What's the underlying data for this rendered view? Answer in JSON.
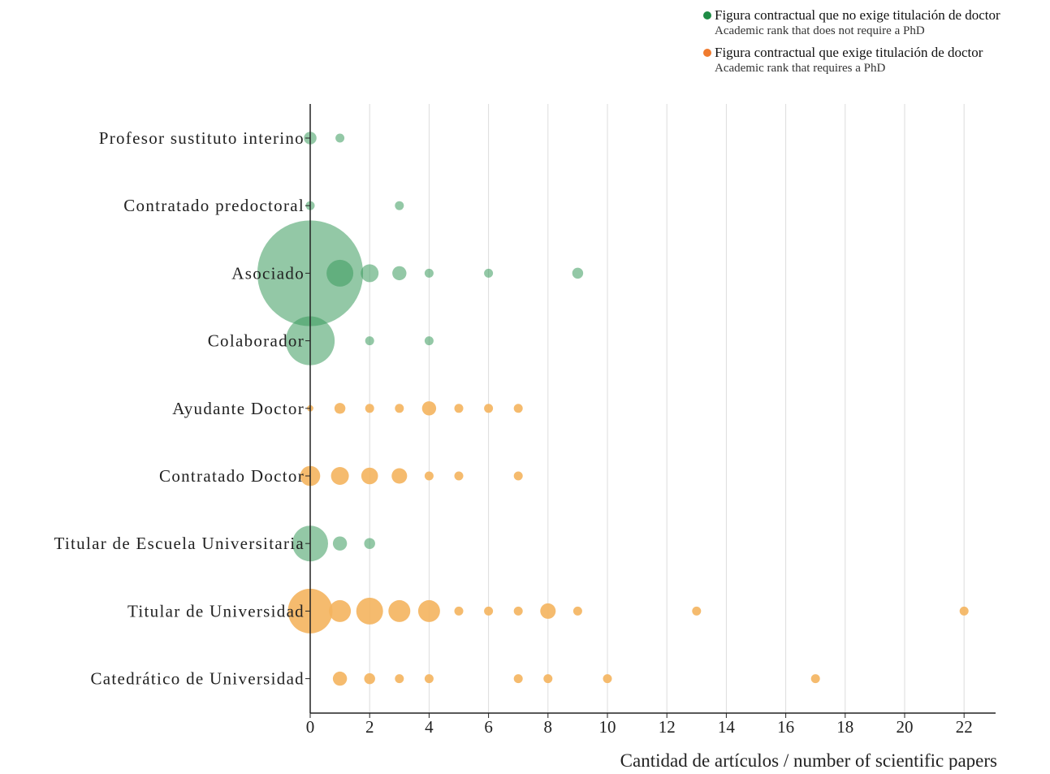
{
  "legend": {
    "no_phd_es": "Figura contractual que no exige titulación de doctor",
    "no_phd_en": "Academic rank that does not require a PhD",
    "phd_es": "Figura contractual que exige titulación de doctor",
    "phd_en": "Academic rank that requires a PhD"
  },
  "colors": {
    "no_phd_legend": "#1e8c45",
    "phd_legend": "#f07b2e",
    "no_phd_bubble": "#3a9a5c",
    "phd_bubble": "#f4b45e",
    "axis": "#222222",
    "grid": "#dddddd"
  },
  "chart_data": {
    "type": "scatter",
    "subtype": "bubble",
    "xlabel": "Cantidad de artículos / number of scientific papers",
    "xlim": [
      0,
      23
    ],
    "xticks": [
      0,
      2,
      4,
      6,
      8,
      10,
      12,
      14,
      16,
      18,
      20,
      22
    ],
    "grid": "vertical",
    "legend_position": "top-right",
    "categories": [
      "Profesor sustituto interino",
      "Contratado predoctoral",
      "Asociado",
      "Colaborador",
      "Ayudante Doctor",
      "Contratado Doctor",
      "Titular de Escuela Universitaria",
      "Titular de Universidad",
      "Catedrático de Universidad"
    ],
    "category_group": [
      "no_phd",
      "no_phd",
      "no_phd",
      "no_phd",
      "phd",
      "phd",
      "no_phd",
      "phd",
      "phd"
    ],
    "points": [
      {
        "category": "Profesor sustituto interino",
        "x": 0,
        "size": 2
      },
      {
        "category": "Profesor sustituto interino",
        "x": 1,
        "size": 1
      },
      {
        "category": "Contratado predoctoral",
        "x": 0,
        "size": 1
      },
      {
        "category": "Contratado predoctoral",
        "x": 3,
        "size": 1
      },
      {
        "category": "Asociado",
        "x": 0,
        "size": 140
      },
      {
        "category": "Asociado",
        "x": 1,
        "size": 9
      },
      {
        "category": "Asociado",
        "x": 2,
        "size": 4
      },
      {
        "category": "Asociado",
        "x": 3,
        "size": 2.5
      },
      {
        "category": "Asociado",
        "x": 4,
        "size": 1
      },
      {
        "category": "Asociado",
        "x": 6,
        "size": 1
      },
      {
        "category": "Asociado",
        "x": 9,
        "size": 1.5
      },
      {
        "category": "Colaborador",
        "x": 0,
        "size": 30
      },
      {
        "category": "Colaborador",
        "x": 2,
        "size": 1
      },
      {
        "category": "Colaborador",
        "x": 4,
        "size": 1
      },
      {
        "category": "Ayudante Doctor",
        "x": 0,
        "size": 0.5
      },
      {
        "category": "Ayudante Doctor",
        "x": 1,
        "size": 1.5
      },
      {
        "category": "Ayudante Doctor",
        "x": 2,
        "size": 1
      },
      {
        "category": "Ayudante Doctor",
        "x": 3,
        "size": 1
      },
      {
        "category": "Ayudante Doctor",
        "x": 4,
        "size": 2.5
      },
      {
        "category": "Ayudante Doctor",
        "x": 5,
        "size": 1
      },
      {
        "category": "Ayudante Doctor",
        "x": 6,
        "size": 1
      },
      {
        "category": "Ayudante Doctor",
        "x": 7,
        "size": 1
      },
      {
        "category": "Contratado Doctor",
        "x": 0,
        "size": 5
      },
      {
        "category": "Contratado Doctor",
        "x": 1,
        "size": 4
      },
      {
        "category": "Contratado Doctor",
        "x": 2,
        "size": 3.5
      },
      {
        "category": "Contratado Doctor",
        "x": 3,
        "size": 3
      },
      {
        "category": "Contratado Doctor",
        "x": 4,
        "size": 1
      },
      {
        "category": "Contratado Doctor",
        "x": 5,
        "size": 1
      },
      {
        "category": "Contratado Doctor",
        "x": 7,
        "size": 1
      },
      {
        "category": "Titular de Escuela Universitaria",
        "x": 0,
        "size": 16
      },
      {
        "category": "Titular de Escuela Universitaria",
        "x": 1,
        "size": 2.5
      },
      {
        "category": "Titular de Escuela Universitaria",
        "x": 2,
        "size": 1.5
      },
      {
        "category": "Titular de Universidad",
        "x": 0,
        "size": 25
      },
      {
        "category": "Titular de Universidad",
        "x": 1,
        "size": 6
      },
      {
        "category": "Titular de Universidad",
        "x": 2,
        "size": 9
      },
      {
        "category": "Titular de Universidad",
        "x": 3,
        "size": 6
      },
      {
        "category": "Titular de Universidad",
        "x": 4,
        "size": 6
      },
      {
        "category": "Titular de Universidad",
        "x": 5,
        "size": 1
      },
      {
        "category": "Titular de Universidad",
        "x": 6,
        "size": 1
      },
      {
        "category": "Titular de Universidad",
        "x": 7,
        "size": 1
      },
      {
        "category": "Titular de Universidad",
        "x": 8,
        "size": 3
      },
      {
        "category": "Titular de Universidad",
        "x": 9,
        "size": 1
      },
      {
        "category": "Titular de Universidad",
        "x": 13,
        "size": 1
      },
      {
        "category": "Titular de Universidad",
        "x": 22,
        "size": 1
      },
      {
        "category": "Catedrático de Universidad",
        "x": 1,
        "size": 2.5
      },
      {
        "category": "Catedrático de Universidad",
        "x": 2,
        "size": 1.5
      },
      {
        "category": "Catedrático de Universidad",
        "x": 3,
        "size": 1
      },
      {
        "category": "Catedrático de Universidad",
        "x": 4,
        "size": 1
      },
      {
        "category": "Catedrático de Universidad",
        "x": 7,
        "size": 1
      },
      {
        "category": "Catedrático de Universidad",
        "x": 8,
        "size": 1
      },
      {
        "category": "Catedrático de Universidad",
        "x": 10,
        "size": 1
      },
      {
        "category": "Catedrático de Universidad",
        "x": 17,
        "size": 1
      }
    ]
  }
}
